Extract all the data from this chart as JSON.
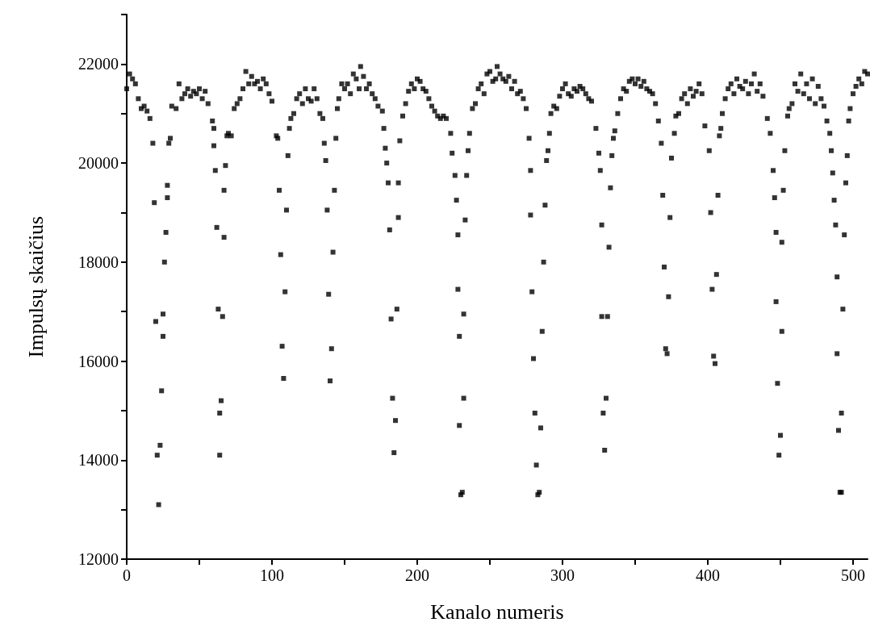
{
  "chart_data": {
    "type": "scatter",
    "xlabel": "Kanalo numeris",
    "ylabel": "Impulsų skaičius",
    "marker": "square",
    "grid": false,
    "color": "#000000",
    "xlim": [
      0,
      510
    ],
    "xticks": [
      0,
      {
        "value": 50,
        "label": null
      },
      100,
      {
        "value": 150,
        "label": null
      },
      200,
      {
        "value": 250,
        "label": null
      },
      300,
      {
        "value": 350,
        "label": null
      },
      400,
      {
        "value": 450,
        "label": null
      },
      500
    ],
    "ylim": [
      12000,
      23000
    ],
    "yticks": [
      12000,
      {
        "value": 13000,
        "label": null
      },
      14000,
      {
        "value": 15000,
        "label": null
      },
      16000,
      {
        "value": 17000,
        "label": null
      },
      18000,
      {
        "value": 19000,
        "label": null
      },
      20000,
      {
        "value": 21000,
        "label": null
      },
      22000,
      {
        "value": 23000,
        "label": null
      }
    ],
    "x": [
      0,
      2,
      4,
      6,
      8,
      10,
      12,
      14,
      16,
      18,
      19,
      20,
      21,
      22,
      23,
      24,
      25,
      25,
      26,
      27,
      28,
      28,
      29,
      30,
      31,
      34,
      36,
      38,
      40,
      42,
      44,
      46,
      48,
      50,
      52,
      54,
      56,
      59,
      60,
      60,
      61,
      62,
      63,
      64,
      64,
      65,
      66,
      67,
      67,
      68,
      69,
      70,
      72,
      74,
      76,
      78,
      80,
      82,
      84,
      86,
      88,
      90,
      92,
      94,
      96,
      98,
      100,
      103,
      104,
      105,
      106,
      107,
      108,
      109,
      110,
      111,
      112,
      113,
      115,
      117,
      119,
      121,
      123,
      125,
      127,
      129,
      131,
      133,
      135,
      136,
      137,
      138,
      139,
      140,
      141,
      142,
      143,
      144,
      145,
      146,
      148,
      150,
      152,
      154,
      156,
      158,
      160,
      161,
      163,
      165,
      167,
      169,
      171,
      173,
      176,
      177,
      178,
      179,
      180,
      181,
      182,
      183,
      184,
      185,
      186,
      187,
      187,
      188,
      190,
      192,
      194,
      196,
      198,
      200,
      202,
      204,
      206,
      208,
      210,
      212,
      214,
      216,
      218,
      220,
      223,
      224,
      226,
      227,
      228,
      228,
      229,
      229,
      230,
      231,
      232,
      232,
      233,
      234,
      235,
      236,
      238,
      240,
      242,
      244,
      246,
      248,
      250,
      252,
      254,
      255,
      257,
      259,
      261,
      263,
      265,
      267,
      269,
      271,
      273,
      275,
      277,
      278,
      278,
      279,
      280,
      281,
      282,
      283,
      284,
      285,
      286,
      287,
      288,
      289,
      290,
      291,
      292,
      294,
      296,
      298,
      300,
      302,
      304,
      306,
      308,
      310,
      312,
      314,
      316,
      318,
      320,
      323,
      325,
      326,
      327,
      327,
      328,
      329,
      330,
      331,
      332,
      333,
      334,
      335,
      336,
      338,
      340,
      342,
      344,
      346,
      348,
      350,
      352,
      354,
      356,
      358,
      360,
      362,
      364,
      366,
      368,
      369,
      370,
      371,
      372,
      373,
      374,
      375,
      377,
      378,
      380,
      382,
      384,
      386,
      388,
      390,
      392,
      394,
      396,
      398,
      401,
      402,
      403,
      404,
      405,
      406,
      407,
      408,
      409,
      410,
      412,
      414,
      416,
      418,
      420,
      422,
      424,
      426,
      428,
      430,
      432,
      434,
      436,
      438,
      441,
      443,
      445,
      446,
      447,
      447,
      448,
      449,
      450,
      451,
      451,
      452,
      453,
      455,
      456,
      458,
      460,
      462,
      464,
      466,
      468,
      470,
      472,
      474,
      476,
      478,
      480,
      482,
      484,
      485,
      486,
      487,
      488,
      489,
      489,
      490,
      491,
      492,
      492,
      493,
      494,
      495,
      496,
      497,
      498,
      500,
      502,
      504,
      506,
      508,
      510
    ],
    "values": [
      21500,
      21800,
      21700,
      21600,
      21300,
      21100,
      21150,
      21050,
      20900,
      20400,
      19200,
      16800,
      14100,
      13100,
      14300,
      15400,
      16500,
      16950,
      18000,
      18600,
      19300,
      19550,
      20400,
      20500,
      21150,
      21100,
      21600,
      21300,
      21400,
      21500,
      21350,
      21450,
      21400,
      21500,
      21300,
      21450,
      21200,
      20850,
      20700,
      20350,
      19850,
      18700,
      17050,
      14950,
      14100,
      15200,
      16900,
      18500,
      19450,
      19950,
      20550,
      20600,
      20550,
      21100,
      21200,
      21300,
      21500,
      21850,
      21600,
      21750,
      21600,
      21650,
      21500,
      21700,
      21600,
      21400,
      21250,
      20550,
      20500,
      19450,
      18150,
      16300,
      15650,
      17400,
      19050,
      20150,
      20700,
      20900,
      21000,
      21300,
      21400,
      21200,
      21500,
      21300,
      21250,
      21500,
      21300,
      21000,
      20900,
      20400,
      20050,
      19050,
      17350,
      15600,
      16250,
      18200,
      19450,
      20500,
      21100,
      21300,
      21600,
      21500,
      21600,
      21400,
      21800,
      21700,
      21500,
      21950,
      21750,
      21500,
      21600,
      21400,
      21300,
      21150,
      21050,
      20700,
      20300,
      20000,
      19600,
      18650,
      16850,
      15250,
      14150,
      14800,
      17050,
      18900,
      19600,
      20450,
      20950,
      21200,
      21450,
      21600,
      21500,
      21700,
      21650,
      21500,
      21450,
      21300,
      21150,
      21050,
      20950,
      20900,
      20950,
      20900,
      20600,
      20200,
      19750,
      19250,
      18550,
      17450,
      16500,
      14700,
      13300,
      13350,
      15250,
      16950,
      18850,
      19750,
      20250,
      20600,
      21100,
      21200,
      21500,
      21600,
      21400,
      21800,
      21850,
      21650,
      21700,
      21950,
      21800,
      21700,
      21650,
      21750,
      21500,
      21650,
      21400,
      21450,
      21300,
      21100,
      20500,
      19850,
      18950,
      17400,
      16050,
      14950,
      13900,
      13300,
      13350,
      14650,
      16600,
      18000,
      19150,
      20050,
      20250,
      20600,
      21000,
      21150,
      21100,
      21350,
      21500,
      21600,
      21400,
      21350,
      21500,
      21450,
      21550,
      21500,
      21400,
      21300,
      21250,
      20700,
      20200,
      19850,
      18750,
      16900,
      14950,
      14200,
      15250,
      16900,
      18300,
      19500,
      20150,
      20500,
      20650,
      21000,
      21300,
      21500,
      21450,
      21650,
      21700,
      21600,
      21700,
      21550,
      21650,
      21500,
      21450,
      21400,
      21200,
      20850,
      20400,
      19350,
      17900,
      16250,
      16150,
      17300,
      18900,
      20100,
      20600,
      20950,
      21000,
      21300,
      21400,
      21200,
      21500,
      21350,
      21450,
      21600,
      21400,
      20750,
      20250,
      19000,
      17450,
      16100,
      15950,
      17750,
      19350,
      20550,
      20700,
      21000,
      21300,
      21500,
      21600,
      21400,
      21700,
      21550,
      21500,
      21650,
      21400,
      21600,
      21800,
      21450,
      21600,
      21350,
      20900,
      20600,
      19850,
      19300,
      18600,
      17200,
      15550,
      14100,
      14500,
      16600,
      18400,
      19450,
      20250,
      20950,
      21100,
      21200,
      21600,
      21450,
      21800,
      21400,
      21600,
      21300,
      21700,
      21200,
      21550,
      21300,
      21150,
      20850,
      20600,
      20250,
      19800,
      19250,
      18750,
      17700,
      16150,
      14600,
      13350,
      13350,
      14950,
      17050,
      18550,
      19600,
      20150,
      20850,
      21100,
      21400,
      21550,
      21700,
      21600,
      21850,
      21800
    ]
  }
}
